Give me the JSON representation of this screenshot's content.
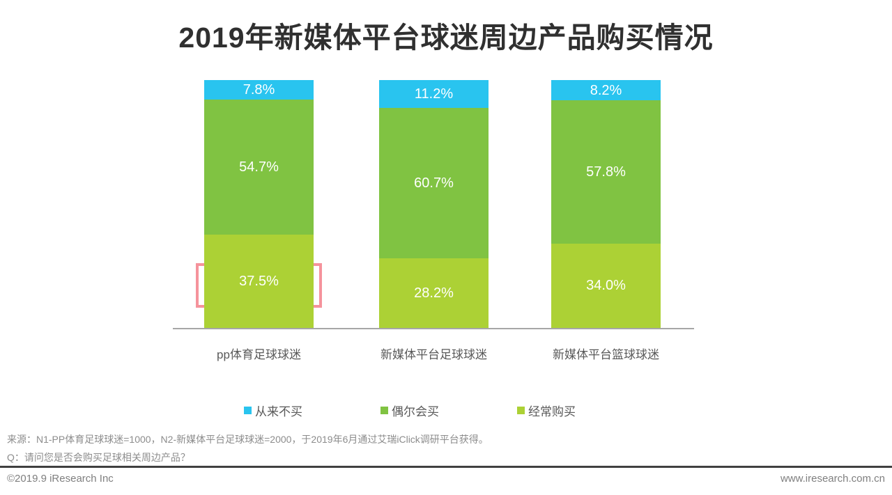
{
  "title": "2019年新媒体平台球迷周边产品购买情况",
  "chart_data": {
    "type": "bar",
    "stacked": true,
    "orientation": "vertical",
    "categories": [
      "pp体育足球球迷",
      "新媒体平台足球球迷",
      "新媒体平台篮球球迷"
    ],
    "series": [
      {
        "name": "从来不买",
        "color": "#29C4EF",
        "values": [
          7.8,
          11.2,
          8.2
        ]
      },
      {
        "name": "偶尔会买",
        "color": "#80C342",
        "values": [
          54.7,
          60.7,
          57.8
        ]
      },
      {
        "name": "经常购买",
        "color": "#ACD135",
        "values": [
          37.5,
          28.2,
          34.0
        ]
      }
    ],
    "value_suffix": "%",
    "ylim": [
      0,
      100
    ],
    "grid": false,
    "legend_position": "bottom",
    "annotations": [
      {
        "type": "highlight-box",
        "category": "pp体育足球球迷",
        "series": "经常购买",
        "value": "37.5%",
        "color": "#F5939C"
      }
    ]
  },
  "notes": {
    "source": "来源：N1-PP体育足球球迷=1000，N2-新媒体平台足球球迷=2000，于2019年6月通过艾瑞iClick调研平台获得。",
    "question": "Q：请问您是否会购买足球相关周边产品？"
  },
  "footer": {
    "left": "©2019.9 iResearch Inc",
    "right": "www.iresearch.com.cn"
  }
}
